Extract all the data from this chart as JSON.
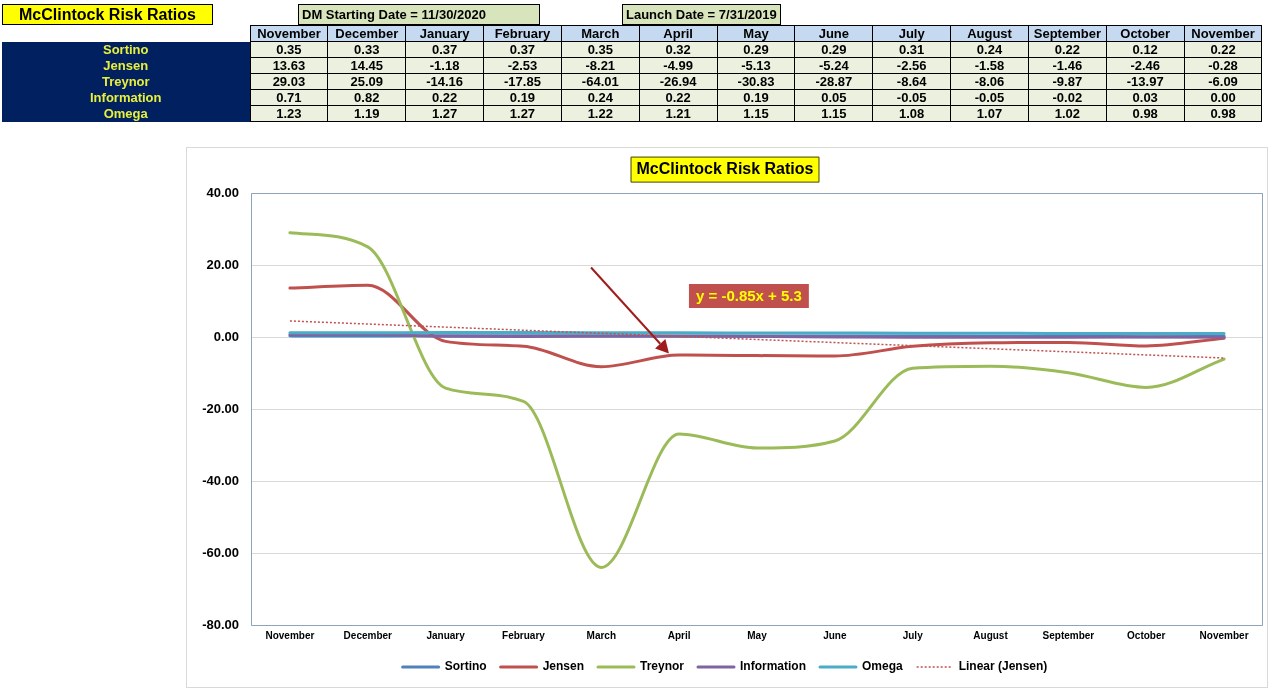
{
  "chart_data": {
    "type": "line",
    "title": "McClintock Risk Ratios",
    "annotations": [
      "McClintock Risk Ratios",
      "DM Starting Date = 11/30/2020",
      "Launch Date = 7/31/2019",
      "y = -0.85x + 5.3"
    ],
    "categories": [
      "November",
      "December",
      "January",
      "February",
      "March",
      "April",
      "May",
      "June",
      "July",
      "August",
      "September",
      "October",
      "November"
    ],
    "series": [
      {
        "name": "Sortino",
        "color": "#4f81bd",
        "values": [
          0.35,
          0.33,
          0.37,
          0.37,
          0.35,
          0.32,
          0.29,
          0.29,
          0.31,
          0.24,
          0.22,
          0.12,
          0.22
        ],
        "value_labels": [
          "0.35",
          "0.33",
          "0.37",
          "0.37",
          "0.35",
          "0.32",
          "0.29",
          "0.29",
          "0.31",
          "0.24",
          "0.22",
          "0.12",
          "0.22"
        ]
      },
      {
        "name": "Jensen",
        "color": "#c0504d",
        "values": [
          13.63,
          14.45,
          -1.18,
          -2.53,
          -8.21,
          -4.99,
          -5.13,
          -5.24,
          -2.56,
          -1.58,
          -1.46,
          -2.46,
          -0.28
        ],
        "value_labels": [
          "13.63",
          "14.45",
          "-1.18",
          "-2.53",
          "-8.21",
          "-4.99",
          "-5.13",
          "-5.24",
          "-2.56",
          "-1.58",
          "-1.46",
          "-2.46",
          "-0.28"
        ]
      },
      {
        "name": "Treynor",
        "color": "#9bbb59",
        "values": [
          29.03,
          25.09,
          -14.16,
          -17.85,
          -64.01,
          -26.94,
          -30.83,
          -28.87,
          -8.64,
          -8.06,
          -9.87,
          -13.97,
          -6.09
        ],
        "value_labels": [
          "29.03",
          "25.09",
          "-14.16",
          "-17.85",
          "-64.01",
          "-26.94",
          "-30.83",
          "-28.87",
          "-8.64",
          "-8.06",
          "-9.87",
          "-13.97",
          "-6.09"
        ]
      },
      {
        "name": "Information",
        "color": "#8064a2",
        "values": [
          0.71,
          0.82,
          0.22,
          0.19,
          0.24,
          0.22,
          0.19,
          0.05,
          -0.05,
          -0.05,
          -0.02,
          0.03,
          0.0
        ],
        "value_labels": [
          "0.71",
          "0.82",
          "0.22",
          "0.19",
          "0.24",
          "0.22",
          "0.19",
          "0.05",
          "-0.05",
          "-0.05",
          "-0.02",
          "0.03",
          "0.00"
        ]
      },
      {
        "name": "Omega",
        "color": "#4bacc6",
        "values": [
          1.23,
          1.19,
          1.27,
          1.27,
          1.22,
          1.21,
          1.15,
          1.15,
          1.08,
          1.07,
          1.02,
          0.98,
          0.98
        ],
        "value_labels": [
          "1.23",
          "1.19",
          "1.27",
          "1.27",
          "1.22",
          "1.21",
          "1.15",
          "1.15",
          "1.08",
          "1.07",
          "1.02",
          "0.98",
          "0.98"
        ]
      },
      {
        "name": "Linear (Jensen)",
        "type": "line",
        "color": "#c0504d",
        "line_style": "dotted",
        "values": [
          4.5,
          null,
          null,
          null,
          null,
          null,
          null,
          null,
          null,
          null,
          null,
          null,
          -5.8
        ]
      }
    ],
    "ylim": [
      -80,
      40
    ],
    "yticks": [
      {
        "value": -80,
        "label": "-80.00"
      },
      {
        "value": -60,
        "label": "-60.00"
      },
      {
        "value": -40,
        "label": "-40.00"
      },
      {
        "value": -20,
        "label": "-20.00"
      },
      {
        "value": 0,
        "label": "0.00"
      },
      {
        "value": 20,
        "label": "20.00"
      },
      {
        "value": 40,
        "label": "40.00"
      }
    ],
    "grid": "y",
    "legend": "bottom",
    "marker": "none"
  }
}
